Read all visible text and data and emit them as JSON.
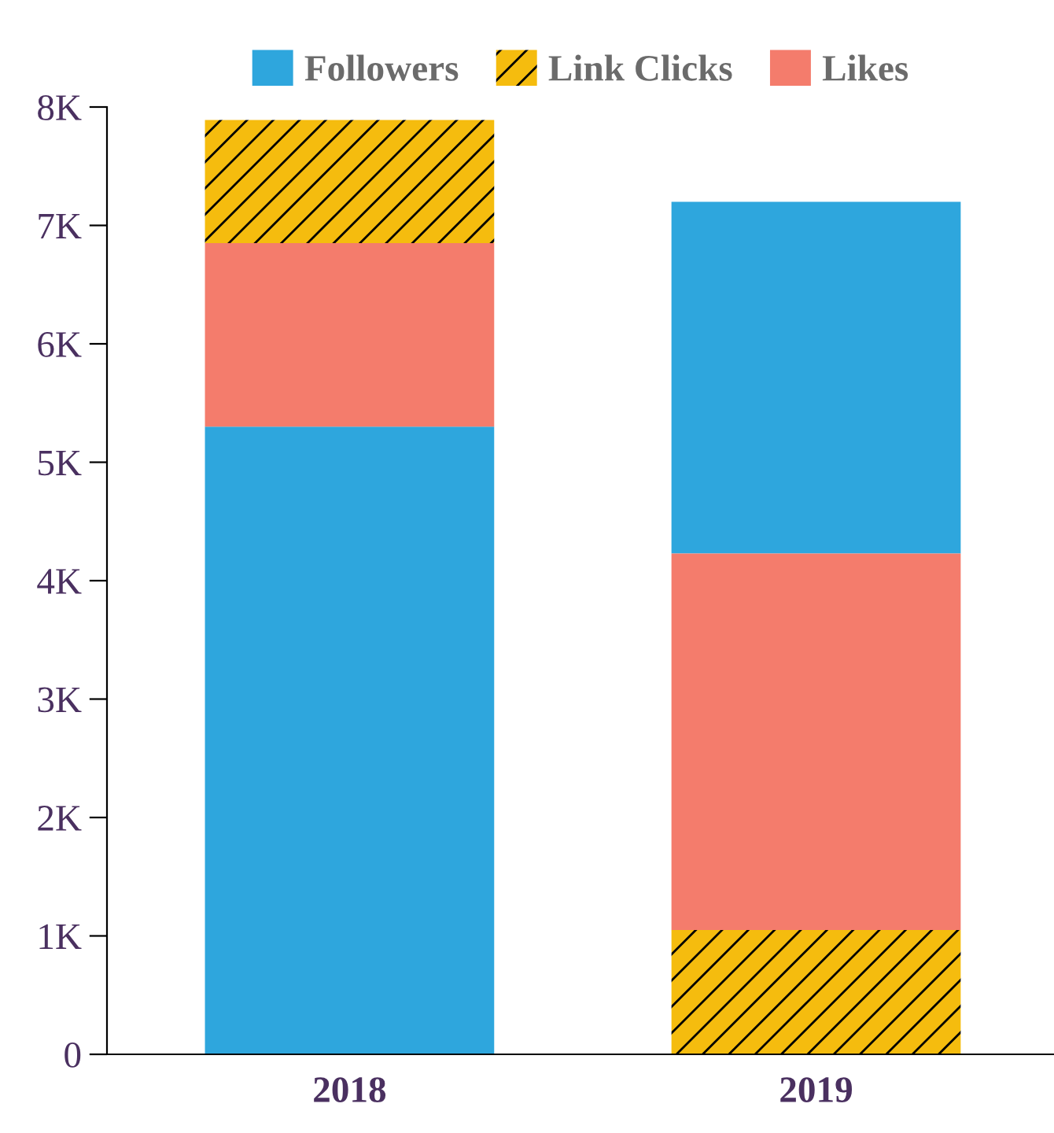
{
  "chart_data": {
    "type": "bar",
    "categories": [
      "2018",
      "2019"
    ],
    "series": [
      {
        "name": "Followers",
        "color": "#2ea6dd",
        "values": [
          5300,
          2970
        ],
        "base": [
          0,
          4230
        ]
      },
      {
        "name": "Link Clicks",
        "color": "#f5bc0e",
        "values": [
          1040,
          1050
        ],
        "base": [
          6850,
          0
        ]
      },
      {
        "name": "Likes",
        "color": "#f47c6c",
        "values": [
          1550,
          3180
        ],
        "base": [
          5300,
          1050
        ]
      }
    ],
    "ylim": [
      0,
      8000
    ],
    "yticks": [
      0,
      {
        "value": 1000,
        "label": "1K"
      },
      {
        "value": 2000,
        "label": "2K"
      },
      {
        "value": 3000,
        "label": "3K"
      },
      {
        "value": 4000,
        "label": "4K"
      },
      {
        "value": 5000,
        "label": "5K"
      },
      {
        "value": 6000,
        "label": "6K"
      },
      {
        "value": 7000,
        "label": "7K"
      },
      {
        "value": 8000,
        "label": "8K"
      }
    ],
    "grid": false,
    "legend": "top"
  }
}
